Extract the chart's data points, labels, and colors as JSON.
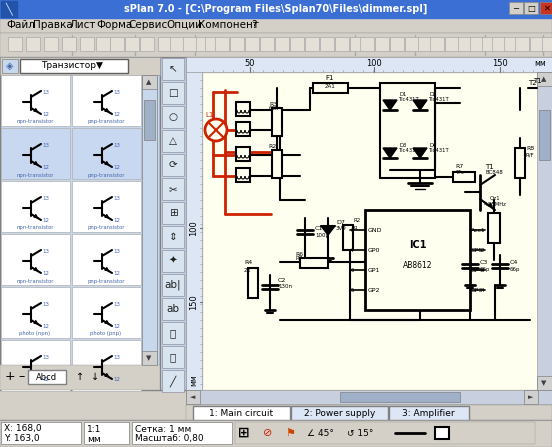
{
  "title_bar_text": "sPlan 7.0 - [C:\\Program Files\\Splan70\\Files\\dimmer.spl]",
  "title_bar_bg": "#3b6fd4",
  "title_bar_text_color": "#ffffff",
  "window_bg": "#d4d0c8",
  "canvas_bg": "#fffff0",
  "schematic_bg": "#fffff0",
  "menu_items": [
    "Файл",
    "Правка",
    "Лист",
    "Форма",
    "Сервис",
    "Опции",
    "Компонент",
    "?"
  ],
  "menu_bg": "#d4d0c8",
  "toolbar_bg": "#d4d0c8",
  "left_panel_bg": "#c8d8ec",
  "tabs": [
    "1: Main circuit",
    "2: Power supply",
    "3: Amplifier"
  ],
  "ruler_color": "#dce6f5",
  "ruler_text_color": "#000000",
  "scrollbar_bg": "#c8d0e0",
  "scrollbar_thumb": "#a0b0c8",
  "component_panel_label": "Транзистор▼",
  "red_line_color": "#cc2200",
  "schematic_line_color": "#000000",
  "status_x": "X: 168,0",
  "status_y": "Y: 163,0",
  "status_scale": "1:1",
  "status_unit": "мм",
  "status_grid": "Сетка: 1 мм",
  "status_zoom": "Масштаб: 0,80"
}
